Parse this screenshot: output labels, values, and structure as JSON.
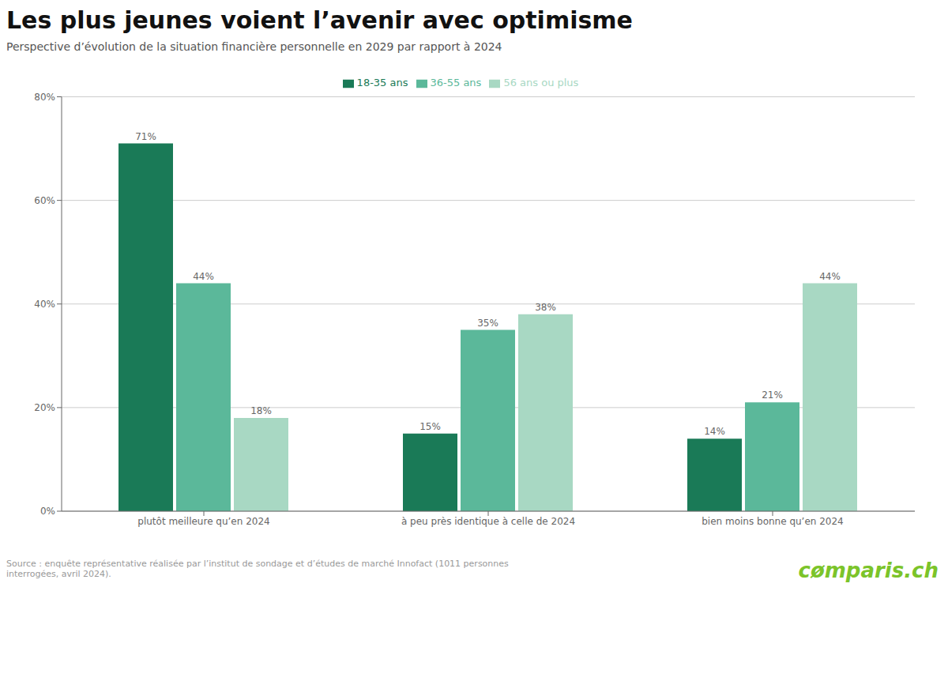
{
  "chart_data": {
    "type": "bar",
    "title": "Les plus jeunes voient l’avenir avec optimisme",
    "subtitle": "Perspective d’évolution de la situation financière personnelle en 2029 par rapport à 2024",
    "categories": [
      "plutôt meilleure qu’en 2024",
      "à peu près identique à celle de 2024",
      "bien moins bonne qu’en 2024"
    ],
    "series": [
      {
        "name": "18-35 ans",
        "color": "#1a7a57",
        "values": [
          71,
          15,
          14
        ],
        "value_labels": [
          "71%",
          "15%",
          "14%"
        ]
      },
      {
        "name": "36-55 ans",
        "color": "#5bb89a",
        "values": [
          44,
          35,
          21
        ],
        "value_labels": [
          "44%",
          "35%",
          "21%"
        ]
      },
      {
        "name": "56 ans ou plus",
        "color": "#a8d8c3",
        "values": [
          18,
          38,
          44
        ],
        "value_labels": [
          "18%",
          "38%",
          "44%"
        ]
      }
    ],
    "ylim": [
      0,
      80
    ],
    "yticks": [
      {
        "value": 0,
        "label": "0%"
      },
      {
        "value": 20,
        "label": "20%"
      },
      {
        "value": 40,
        "label": "40%"
      },
      {
        "value": 60,
        "label": "60%"
      },
      {
        "value": 80,
        "label": "80%"
      }
    ],
    "grid": true,
    "legend": "top",
    "data_labels": true,
    "annotations": [
      {
        "text": "Source : enquête représentative réalisée par l’institut de sondage et d’études de marché Innofact (1011 personnes\ninterrogées, avril 2024)."
      },
      {
        "text": "cømparis.ch",
        "color": "#7bc42a"
      }
    ]
  }
}
